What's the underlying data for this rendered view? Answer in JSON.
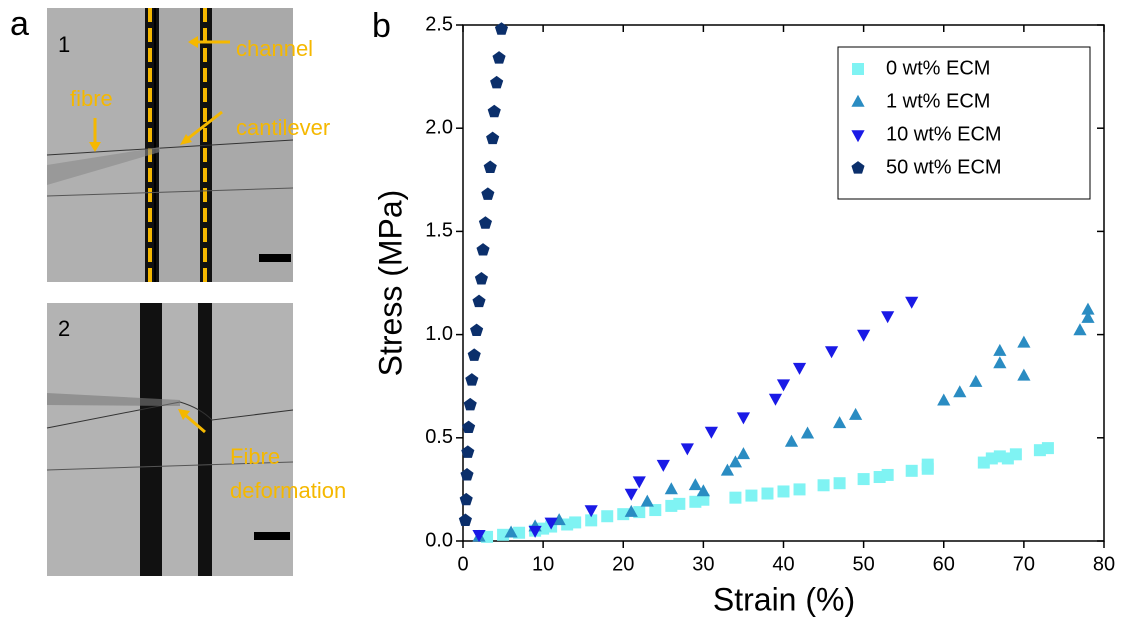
{
  "panel_a": {
    "label": "a",
    "images": [
      {
        "label": "1",
        "annotations": [
          "channel",
          "fibre",
          "cantilever"
        ]
      },
      {
        "label": "2",
        "annotation_lines": [
          "Fibre",
          "deformation"
        ]
      }
    ]
  },
  "chart_data": {
    "type": "scatter",
    "panel_label": "b",
    "x_label": "Strain (%)",
    "y_label": "Stress (MPa)",
    "xlim": [
      0,
      80
    ],
    "ylim": [
      0,
      2.5
    ],
    "xticks": [
      0,
      10,
      20,
      30,
      40,
      50,
      60,
      70,
      80
    ],
    "yticks": [
      {
        "value": 0,
        "label": "0.0"
      },
      0.5,
      {
        "value": 1,
        "label": "1.0"
      },
      1.5,
      {
        "value": 2,
        "label": "2.0"
      },
      2.5
    ],
    "legend": "upper right",
    "series": [
      {
        "name": "0 wt% ECM",
        "color": "#7ff3f3",
        "marker": "square",
        "x": [
          3,
          5,
          7,
          9,
          10,
          11,
          13,
          14,
          16,
          18,
          20,
          22,
          24,
          26,
          27,
          29,
          30,
          34,
          36,
          38,
          40,
          42,
          45,
          47,
          50,
          52,
          53,
          56,
          58,
          58,
          65,
          66,
          67,
          68,
          69,
          72,
          73
        ],
        "values": [
          0.02,
          0.03,
          0.04,
          0.05,
          0.06,
          0.07,
          0.08,
          0.09,
          0.1,
          0.12,
          0.13,
          0.14,
          0.15,
          0.17,
          0.18,
          0.19,
          0.2,
          0.21,
          0.22,
          0.23,
          0.24,
          0.25,
          0.27,
          0.28,
          0.3,
          0.31,
          0.32,
          0.34,
          0.35,
          0.37,
          0.38,
          0.4,
          0.41,
          0.4,
          0.42,
          0.44,
          0.45
        ]
      },
      {
        "name": "1 wt% ECM",
        "color": "#2a8cc2",
        "marker": "triangle-up",
        "x": [
          2,
          6,
          9,
          12,
          21,
          23,
          26,
          29,
          30,
          33,
          34,
          35,
          41,
          43,
          47,
          49,
          60,
          62,
          64,
          67,
          67,
          70,
          70,
          77,
          78,
          78
        ],
        "values": [
          0.02,
          0.04,
          0.07,
          0.1,
          0.14,
          0.19,
          0.25,
          0.27,
          0.24,
          0.34,
          0.38,
          0.42,
          0.48,
          0.52,
          0.57,
          0.61,
          0.68,
          0.72,
          0.77,
          0.86,
          0.92,
          0.96,
          0.8,
          1.02,
          1.12,
          1.08
        ]
      },
      {
        "name": "10 wt% ECM",
        "color": "#1a1ae6",
        "marker": "triangle-down",
        "x": [
          2,
          9,
          11,
          16,
          21,
          22,
          25,
          28,
          31,
          35,
          39,
          40,
          42,
          46,
          50,
          53,
          56
        ],
        "values": [
          0.03,
          0.05,
          0.09,
          0.15,
          0.23,
          0.29,
          0.37,
          0.45,
          0.53,
          0.6,
          0.69,
          0.76,
          0.84,
          0.92,
          1.0,
          1.09,
          1.16
        ]
      },
      {
        "name": "50 wt% ECM",
        "color": "#0b2f6b",
        "marker": "pentagon",
        "x": [
          0.3,
          0.4,
          0.5,
          0.6,
          0.7,
          0.9,
          1.1,
          1.4,
          1.7,
          2,
          2.3,
          2.5,
          2.8,
          3.1,
          3.4,
          3.7,
          3.9,
          4.2,
          4.5,
          4.8
        ],
        "values": [
          0.1,
          0.2,
          0.32,
          0.43,
          0.55,
          0.66,
          0.78,
          0.9,
          1.02,
          1.16,
          1.27,
          1.41,
          1.54,
          1.68,
          1.81,
          1.95,
          2.08,
          2.22,
          2.34,
          2.48
        ]
      }
    ]
  }
}
